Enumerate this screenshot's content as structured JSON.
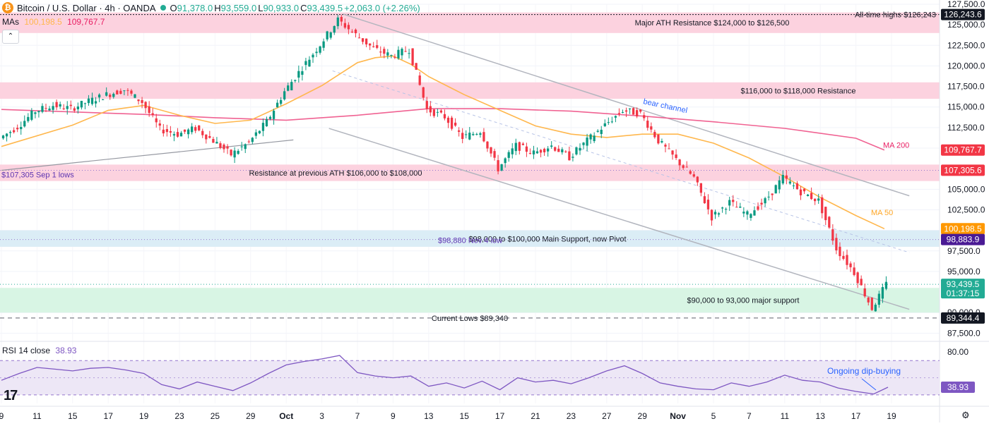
{
  "header": {
    "symbol": "Bitcoin / U.S. Dollar · 4h · OANDA",
    "logo_glyph": "₿",
    "o_label": "O",
    "o_value": "91,378.0",
    "h_label": "H",
    "h_value": "93,559.0",
    "l_label": "L",
    "l_value": "90,933.0",
    "c_label": "C",
    "c_value": "93,439.5",
    "change": "+2,063.0 (+2.26%)"
  },
  "mas": {
    "label": "MAs",
    "ma50_value": "100,198.5",
    "ma200_value": "109,767.7"
  },
  "rsi_header": {
    "label": "RSI 14 close",
    "value": "38.93"
  },
  "chart_data": {
    "type": "candlestick",
    "interval": "4h",
    "ylim": [
      86500,
      127500
    ],
    "y_ticks": [
      87500,
      90000,
      92500,
      95000,
      97500,
      100000,
      102500,
      105000,
      107500,
      110000,
      112500,
      115000,
      117500,
      120000,
      122500,
      125000,
      127500
    ],
    "y_tick_labels": [
      "87,500.0",
      "90,000.0",
      "92,500.0",
      "95,000.0",
      "97,500.0",
      "100,000.0",
      "102,500.0",
      "105,000.0",
      "107,500.0",
      "110,000.0",
      "112,500.0",
      "115,000.0",
      "117,500.0",
      "120,000.0",
      "122,500.0",
      "125,000.0",
      "127,500.0"
    ],
    "x_ticks": [
      {
        "day": 0,
        "label": "9"
      },
      {
        "day": 2,
        "label": "11"
      },
      {
        "day": 4,
        "label": "15"
      },
      {
        "day": 6,
        "label": "17"
      },
      {
        "day": 8,
        "label": "19"
      },
      {
        "day": 10,
        "label": "23"
      },
      {
        "day": 12,
        "label": "25"
      },
      {
        "day": 14,
        "label": "29"
      },
      {
        "day": 16,
        "label": "Oct"
      },
      {
        "day": 18,
        "label": "3"
      },
      {
        "day": 20,
        "label": "7"
      },
      {
        "day": 22,
        "label": "9"
      },
      {
        "day": 24,
        "label": "13"
      },
      {
        "day": 26,
        "label": "15"
      },
      {
        "day": 28,
        "label": "17"
      },
      {
        "day": 30,
        "label": "21"
      },
      {
        "day": 32,
        "label": "23"
      },
      {
        "day": 34,
        "label": "27"
      },
      {
        "day": 36,
        "label": "29"
      },
      {
        "day": 38,
        "label": "Nov"
      },
      {
        "day": 40,
        "label": "5"
      },
      {
        "day": 42,
        "label": "7"
      },
      {
        "day": 44,
        "label": "11"
      },
      {
        "day": 46,
        "label": "13"
      },
      {
        "day": 48,
        "label": "17"
      },
      {
        "day": 50,
        "label": "19"
      }
    ],
    "bold_x_labels": [
      "Oct",
      "Nov"
    ],
    "price_path": [
      [
        0,
        111200
      ],
      [
        1,
        112600
      ],
      [
        2,
        114500
      ],
      [
        3,
        115200
      ],
      [
        4,
        114800
      ],
      [
        5,
        115700
      ],
      [
        6,
        116500
      ],
      [
        7,
        117100
      ],
      [
        8,
        115600
      ],
      [
        9,
        112300
      ],
      [
        10,
        111700
      ],
      [
        11,
        112400
      ],
      [
        12,
        110900
      ],
      [
        13,
        109200
      ],
      [
        14,
        110700
      ],
      [
        15,
        113200
      ],
      [
        16,
        116900
      ],
      [
        17,
        119800
      ],
      [
        18,
        122600
      ],
      [
        19,
        125600
      ],
      [
        20,
        123800
      ],
      [
        21,
        122100
      ],
      [
        22,
        121200
      ],
      [
        23,
        122000
      ],
      [
        24,
        114700
      ],
      [
        25,
        113800
      ],
      [
        26,
        111300
      ],
      [
        27,
        112100
      ],
      [
        28,
        107500
      ],
      [
        29,
        110300
      ],
      [
        30,
        109400
      ],
      [
        31,
        110300
      ],
      [
        32,
        108900
      ],
      [
        33,
        110900
      ],
      [
        34,
        112800
      ],
      [
        35,
        114600
      ],
      [
        36,
        114200
      ],
      [
        37,
        110900
      ],
      [
        38,
        108600
      ],
      [
        39,
        106400
      ],
      [
        40,
        101600
      ],
      [
        41,
        103400
      ],
      [
        42,
        101900
      ],
      [
        43,
        103600
      ],
      [
        44,
        106400
      ],
      [
        45,
        104700
      ],
      [
        46,
        103600
      ],
      [
        47,
        97800
      ],
      [
        48,
        94900
      ],
      [
        49,
        90500
      ],
      [
        49.8,
        93439.5
      ]
    ],
    "ma50": [
      [
        0,
        110200
      ],
      [
        4,
        112800
      ],
      [
        6,
        114600
      ],
      [
        8,
        115200
      ],
      [
        10,
        114000
      ],
      [
        12,
        113000
      ],
      [
        14,
        113400
      ],
      [
        16,
        115400
      ],
      [
        18,
        117600
      ],
      [
        19,
        119000
      ],
      [
        20,
        120400
      ],
      [
        21,
        121000
      ],
      [
        22,
        121200
      ],
      [
        23,
        120200
      ],
      [
        24,
        118700
      ],
      [
        26,
        116500
      ],
      [
        28,
        114600
      ],
      [
        30,
        112700
      ],
      [
        32,
        111700
      ],
      [
        34,
        111300
      ],
      [
        36,
        111700
      ],
      [
        38,
        111700
      ],
      [
        40,
        110600
      ],
      [
        42,
        108800
      ],
      [
        44,
        106500
      ],
      [
        46,
        104000
      ],
      [
        48,
        101800
      ],
      [
        49.6,
        100198.5
      ]
    ],
    "ma200": [
      [
        0,
        114700
      ],
      [
        4,
        114400
      ],
      [
        8,
        114100
      ],
      [
        12,
        113700
      ],
      [
        16,
        113400
      ],
      [
        20,
        114000
      ],
      [
        24,
        114800
      ],
      [
        28,
        114800
      ],
      [
        32,
        114500
      ],
      [
        36,
        113900
      ],
      [
        40,
        113200
      ],
      [
        44,
        112400
      ],
      [
        48,
        111200
      ],
      [
        49.6,
        109767.7
      ]
    ],
    "ma_labels": {
      "ma50": "MA 50",
      "ma200": "MA 200"
    },
    "zones": [
      {
        "label": "Major ATH Resistance $124,000 to $126,500",
        "from": 124000,
        "to": 126500,
        "color": "#fcd2df"
      },
      {
        "label": "$116,000 to $118,000 Resistance",
        "from": 116000,
        "to": 118000,
        "color": "#fcd2df"
      },
      {
        "label": "Resistance at previous ATH $106,000 to $108,000",
        "from": 106000,
        "to": 108000,
        "color": "#fcd2df"
      },
      {
        "label": "$98,000 to $100,000 Main Support, now Pivot",
        "from": 98000,
        "to": 100000,
        "color": "#dbedf6"
      },
      {
        "label": "$90,000 to 93,000 major support",
        "from": 90000,
        "to": 93000,
        "color": "#d8f5e4"
      }
    ],
    "levels": [
      {
        "label": "All-time highs $126,243",
        "value": 126243,
        "style": "dotted-dark"
      },
      {
        "label": "$107,305 Sep 1 lows",
        "value": 107305,
        "style": "dotted-purple"
      },
      {
        "label": "$98,880 Nov 4 low",
        "value": 98880,
        "style": "dotted-purple"
      },
      {
        "label": "Current Lows $89,340",
        "value": 89340,
        "style": "dashed-dark"
      },
      {
        "label": "",
        "value": 93439.5,
        "style": "dotted-green"
      }
    ],
    "channel": {
      "label": "bear channel",
      "upper": [
        [
          19.2,
          126300
        ],
        [
          51,
          104200
        ]
      ],
      "lower": [
        [
          18.4,
          112400
        ],
        [
          51,
          90400
        ]
      ],
      "mid": [
        [
          18.6,
          119400
        ],
        [
          51,
          97300
        ]
      ]
    },
    "trendline": [
      [
        0,
        107300
      ],
      [
        16.4,
        111000
      ]
    ],
    "price_tags": [
      {
        "value": 126243.6,
        "text": "126,243.6",
        "color": "#131722"
      },
      {
        "value": 109767.7,
        "text": "109,767.7",
        "color": "#f23645"
      },
      {
        "value": 107305.6,
        "text": "107,305.6",
        "color": "#f23645"
      },
      {
        "value": 100198.5,
        "text": "100,198.5",
        "color": "#ff9800"
      },
      {
        "value": 98883.9,
        "text": "98,883.9",
        "color": "#4a1a94"
      },
      {
        "value": 93439.5,
        "text": "93,439.5",
        "color": "#22ab94",
        "sub": "01:37:15"
      },
      {
        "value": 89344.4,
        "text": "89,344.4",
        "color": "#131722"
      }
    ],
    "rsi": {
      "ylim": [
        20,
        90
      ],
      "upper_band": 70,
      "lower_band": 30,
      "mid": 50,
      "tick": 80,
      "tick_label": "80.00",
      "current": 38.93,
      "path": [
        [
          0,
          47
        ],
        [
          1,
          55
        ],
        [
          2,
          62
        ],
        [
          3,
          60
        ],
        [
          4,
          58
        ],
        [
          5,
          61
        ],
        [
          6,
          62
        ],
        [
          7,
          59
        ],
        [
          8,
          55
        ],
        [
          9,
          42
        ],
        [
          10,
          37
        ],
        [
          11,
          45
        ],
        [
          12,
          40
        ],
        [
          13,
          35
        ],
        [
          14,
          44
        ],
        [
          15,
          55
        ],
        [
          16,
          65
        ],
        [
          17,
          69
        ],
        [
          18,
          72
        ],
        [
          19,
          76
        ],
        [
          20,
          56
        ],
        [
          21,
          52
        ],
        [
          22,
          50
        ],
        [
          23,
          52
        ],
        [
          24,
          40
        ],
        [
          25,
          44
        ],
        [
          26,
          38
        ],
        [
          27,
          46
        ],
        [
          28,
          36
        ],
        [
          29,
          50
        ],
        [
          30,
          45
        ],
        [
          31,
          47
        ],
        [
          32,
          43
        ],
        [
          33,
          50
        ],
        [
          34,
          58
        ],
        [
          35,
          64
        ],
        [
          36,
          55
        ],
        [
          37,
          44
        ],
        [
          38,
          40
        ],
        [
          39,
          37
        ],
        [
          40,
          36
        ],
        [
          41,
          44
        ],
        [
          42,
          40
        ],
        [
          43,
          45
        ],
        [
          44,
          53
        ],
        [
          45,
          47
        ],
        [
          46,
          45
        ],
        [
          47,
          38
        ],
        [
          48,
          34
        ],
        [
          49,
          31
        ],
        [
          49.8,
          38.93
        ]
      ],
      "annotation": "Ongoing dip-buying"
    }
  },
  "colors": {
    "up": "#089981",
    "down": "#f23645",
    "ma50": "#ffb74d",
    "ma200": "#f06292",
    "rsi": "#7e57c2",
    "channel": "#b2b5be"
  },
  "icons": {
    "tv_logo": "tradingview-logo",
    "settings": "gear-icon"
  }
}
